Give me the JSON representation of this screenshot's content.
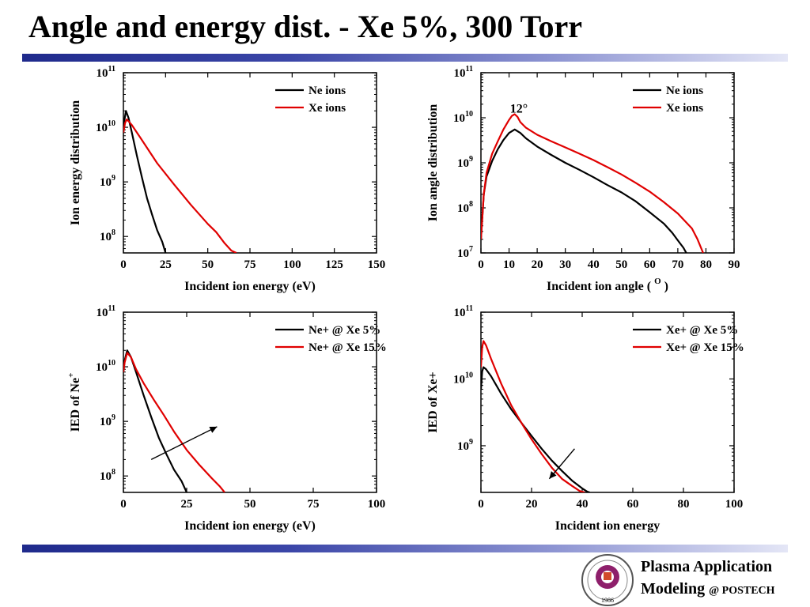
{
  "slide": {
    "title": "Angle and energy dist. - Xe 5%, 300 Torr",
    "footer_line1": "Plasma Application",
    "footer_line2": "Modeling",
    "footer_org": "@ POSTECH",
    "logo_year": "1986"
  },
  "chart_data": [
    {
      "id": "c1",
      "type": "line",
      "xlabel": "Incident ion energy (eV)",
      "ylabel": "Ion energy distribution",
      "xlim": [
        0,
        150
      ],
      "xticks": [
        0,
        25,
        50,
        75,
        100,
        125,
        150
      ],
      "ylog": true,
      "ylim": [
        50000000.0,
        100000000000.0
      ],
      "yticks": [
        {
          "v": 100000000.0,
          "exp": "8"
        },
        {
          "v": 1000000000.0,
          "exp": "9"
        },
        {
          "v": 10000000000.0,
          "exp": "10"
        },
        {
          "v": 100000000000.0,
          "exp": "11"
        }
      ],
      "legend": "top-right",
      "series": [
        {
          "name": "Ne ions",
          "color": "#000000",
          "x": [
            0,
            0.5,
            1.5,
            3,
            5,
            8,
            11,
            14,
            17,
            20,
            23,
            25
          ],
          "y": [
            8000000000.0,
            13000000000.0,
            20000000000.0,
            15000000000.0,
            8000000000.0,
            3000000000.0,
            1200000000.0,
            500000000.0,
            250000000.0,
            130000000.0,
            80000000.0,
            50000000.0
          ]
        },
        {
          "name": "Xe ions",
          "color": "#e00000",
          "x": [
            0,
            1,
            2,
            3,
            5,
            10,
            20,
            30,
            40,
            50,
            55,
            60,
            64,
            67
          ],
          "y": [
            8000000000.0,
            12000000000.0,
            14000000000.0,
            13000000000.0,
            11000000000.0,
            6500000000.0,
            2200000000.0,
            900000000.0,
            380000000.0,
            170000000.0,
            120000000.0,
            75000000.0,
            55000000.0,
            50000000.0
          ]
        }
      ]
    },
    {
      "id": "c2",
      "type": "line",
      "xlabel": "Incident ion angle ( ",
      "xlabel_sup": "O",
      "xlabel_end": " )",
      "ylabel": "Ion angle distribution",
      "xlim": [
        0,
        90
      ],
      "xticks": [
        0,
        10,
        20,
        30,
        40,
        50,
        60,
        70,
        80,
        90
      ],
      "ylog": true,
      "ylim": [
        10000000.0,
        100000000000.0
      ],
      "yticks": [
        {
          "v": 10000000.0,
          "exp": "7"
        },
        {
          "v": 100000000.0,
          "exp": "8"
        },
        {
          "v": 1000000000.0,
          "exp": "9"
        },
        {
          "v": 10000000000.0,
          "exp": "10"
        },
        {
          "v": 100000000000.0,
          "exp": "11"
        }
      ],
      "legend": "top-right",
      "annotations": [
        {
          "text": "12°",
          "x": 13.5,
          "y": 11000000000.0
        }
      ],
      "series": [
        {
          "name": "Ne ions",
          "color": "#000000",
          "x": [
            0,
            1,
            2,
            4,
            6,
            8,
            10,
            12,
            14,
            16,
            20,
            25,
            30,
            35,
            40,
            45,
            50,
            55,
            60,
            65,
            68,
            70,
            72,
            73
          ],
          "y": [
            20000000.0,
            200000000.0,
            500000000.0,
            1100000000.0,
            2000000000.0,
            3200000000.0,
            4600000000.0,
            5500000000.0,
            4600000000.0,
            3500000000.0,
            2300000000.0,
            1500000000.0,
            1000000000.0,
            700000000.0,
            480000000.0,
            320000000.0,
            220000000.0,
            140000000.0,
            80000000.0,
            45000000.0,
            28000000.0,
            19000000.0,
            13000000.0,
            10000000.0
          ]
        },
        {
          "name": "Xe ions",
          "color": "#e00000",
          "x": [
            0,
            1,
            2,
            4,
            6,
            8,
            10,
            11,
            12,
            13,
            14,
            16,
            20,
            25,
            30,
            35,
            40,
            45,
            50,
            55,
            60,
            65,
            70,
            75,
            77,
            79
          ],
          "y": [
            20000000.0,
            200000000.0,
            600000000.0,
            1600000000.0,
            3000000000.0,
            5500000000.0,
            9000000000.0,
            11000000000.0,
            12000000000.0,
            10500000000.0,
            8000000000.0,
            6000000000.0,
            4200000000.0,
            3000000000.0,
            2200000000.0,
            1600000000.0,
            1150000000.0,
            800000000.0,
            550000000.0,
            360000000.0,
            230000000.0,
            135000000.0,
            75000000.0,
            35000000.0,
            20000000.0,
            10000000.0
          ]
        }
      ]
    },
    {
      "id": "c3",
      "type": "line",
      "xlabel": "Incident ion energy (eV)",
      "ylabel": "IED of Ne",
      "ylabel_sup": "+",
      "xlim": [
        0,
        100
      ],
      "xticks": [
        0,
        25,
        50,
        75,
        100
      ],
      "ylog": true,
      "ylim": [
        50000000.0,
        100000000000.0
      ],
      "yticks": [
        {
          "v": 100000000.0,
          "exp": "8"
        },
        {
          "v": 1000000000.0,
          "exp": "9"
        },
        {
          "v": 10000000000.0,
          "exp": "10"
        },
        {
          "v": 100000000000.0,
          "exp": "11"
        }
      ],
      "legend": "top-right",
      "arrow": {
        "from": [
          11,
          200000000.0
        ],
        "to": [
          37,
          800000000.0
        ]
      },
      "series": [
        {
          "name": "Ne+ @ Xe 5%",
          "color": "#000000",
          "x": [
            0,
            0.5,
            1.5,
            3,
            5,
            8,
            11,
            14,
            17,
            20,
            23,
            25
          ],
          "y": [
            8000000000.0,
            13000000000.0,
            20000000000.0,
            15000000000.0,
            8000000000.0,
            3000000000.0,
            1200000000.0,
            500000000.0,
            250000000.0,
            130000000.0,
            80000000.0,
            50000000.0
          ]
        },
        {
          "name": "Ne+ @ Xe 15%",
          "color": "#e00000",
          "x": [
            0,
            0.5,
            1.5,
            3,
            5,
            8,
            12,
            16,
            20,
            25,
            30,
            35,
            38,
            40
          ],
          "y": [
            8000000000.0,
            12000000000.0,
            18000000000.0,
            15000000000.0,
            9000000000.0,
            5000000000.0,
            2500000000.0,
            1300000000.0,
            650000000.0,
            300000000.0,
            160000000.0,
            90000000.0,
            65000000.0,
            50000000.0
          ]
        }
      ]
    },
    {
      "id": "c4",
      "type": "line",
      "xlabel": "Incident ion energy",
      "ylabel": "IED of Xe+",
      "xlim": [
        0,
        100
      ],
      "xticks": [
        0,
        20,
        40,
        60,
        80,
        100
      ],
      "ylog": true,
      "ylim": [
        200000000.0,
        100000000000.0
      ],
      "yticks": [
        {
          "v": 1000000000.0,
          "exp": "9"
        },
        {
          "v": 10000000000.0,
          "exp": "10"
        },
        {
          "v": 100000000000.0,
          "exp": "11"
        }
      ],
      "legend": "top-right",
      "arrow": {
        "from": [
          37,
          900000000.0
        ],
        "to": [
          27,
          320000000.0
        ]
      },
      "series": [
        {
          "name": "Xe+ @ Xe 5%",
          "color": "#000000",
          "x": [
            0,
            0.5,
            1,
            2,
            4,
            8,
            12,
            16,
            20,
            24,
            28,
            32,
            36,
            40,
            42,
            43
          ],
          "y": [
            7000000000.0,
            13000000000.0,
            15000000000.0,
            14000000000.0,
            11000000000.0,
            6000000000.0,
            3500000000.0,
            2200000000.0,
            1400000000.0,
            900000000.0,
            600000000.0,
            420000000.0,
            300000000.0,
            230000000.0,
            205000000.0,
            200000000.0
          ]
        },
        {
          "name": "Xe+ @ Xe 15%",
          "color": "#e00000",
          "x": [
            0,
            0.5,
            1,
            2,
            4,
            8,
            12,
            16,
            20,
            24,
            28,
            32,
            36,
            39,
            41
          ],
          "y": [
            15000000000.0,
            30000000000.0,
            37000000000.0,
            32000000000.0,
            20000000000.0,
            8500000000.0,
            4000000000.0,
            2200000000.0,
            1250000000.0,
            750000000.0,
            470000000.0,
            320000000.0,
            250000000.0,
            210000000.0,
            200000000.0
          ]
        }
      ]
    }
  ]
}
